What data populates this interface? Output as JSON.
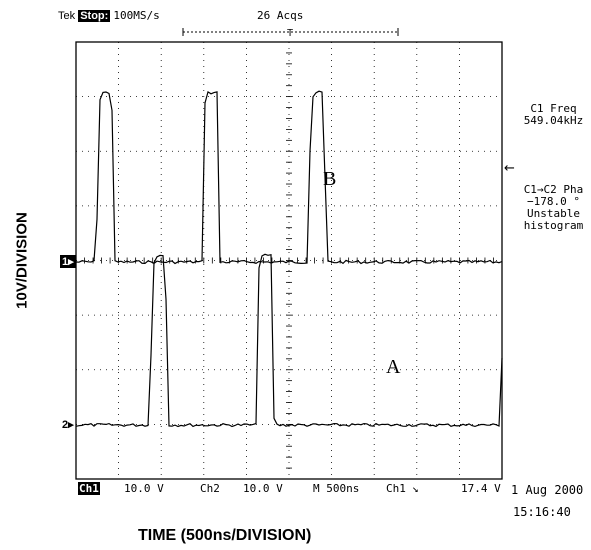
{
  "header": {
    "brand": "Tek",
    "status": "Stop:",
    "sample_rate": "100MS/s",
    "acqs": "26 Acqs"
  },
  "measurements": {
    "freq_label": "C1 Freq",
    "freq_value": "549.04kHz",
    "phase_label": "C1→C2 Pha",
    "phase_value": "−178.0 °",
    "phase_note1": "Unstable",
    "phase_note2": "histogram"
  },
  "bottom_bar": {
    "ch1": "Ch1",
    "ch1_scale": "10.0 V",
    "ch2": "Ch2",
    "ch2_scale": "10.0 V",
    "timebase": "M 500ns",
    "trigger_src": "Ch1",
    "trigger_slope": "↘",
    "trigger_level": "17.4 V"
  },
  "timestamp": {
    "date": "1 Aug 2000",
    "time": "15:16:40"
  },
  "markers": {
    "ch1": "1",
    "ch2": "2"
  },
  "axis_labels": {
    "y": "10V/DIVISION",
    "x": "TIME (500ns/DIVISION)"
  },
  "chart_data": {
    "type": "line",
    "grid": true,
    "divisions": {
      "x": 10,
      "y": 8
    },
    "x_unit": "ns",
    "xlim": [
      0,
      5000
    ],
    "series": [
      {
        "name": "B",
        "channel": "Ch1",
        "baseline_div": 0,
        "pulse_height_div": 3.1,
        "pulse_width_ns": 180,
        "pulse_starts_ns": [
          240,
          1480,
          2730
        ]
      },
      {
        "name": "A",
        "channel": "Ch2",
        "baseline_div": 0,
        "pulse_height_div": 3.1,
        "pulse_width_ns": 180,
        "pulse_starts_ns": [
          870,
          2120,
          4990
        ]
      }
    ]
  }
}
